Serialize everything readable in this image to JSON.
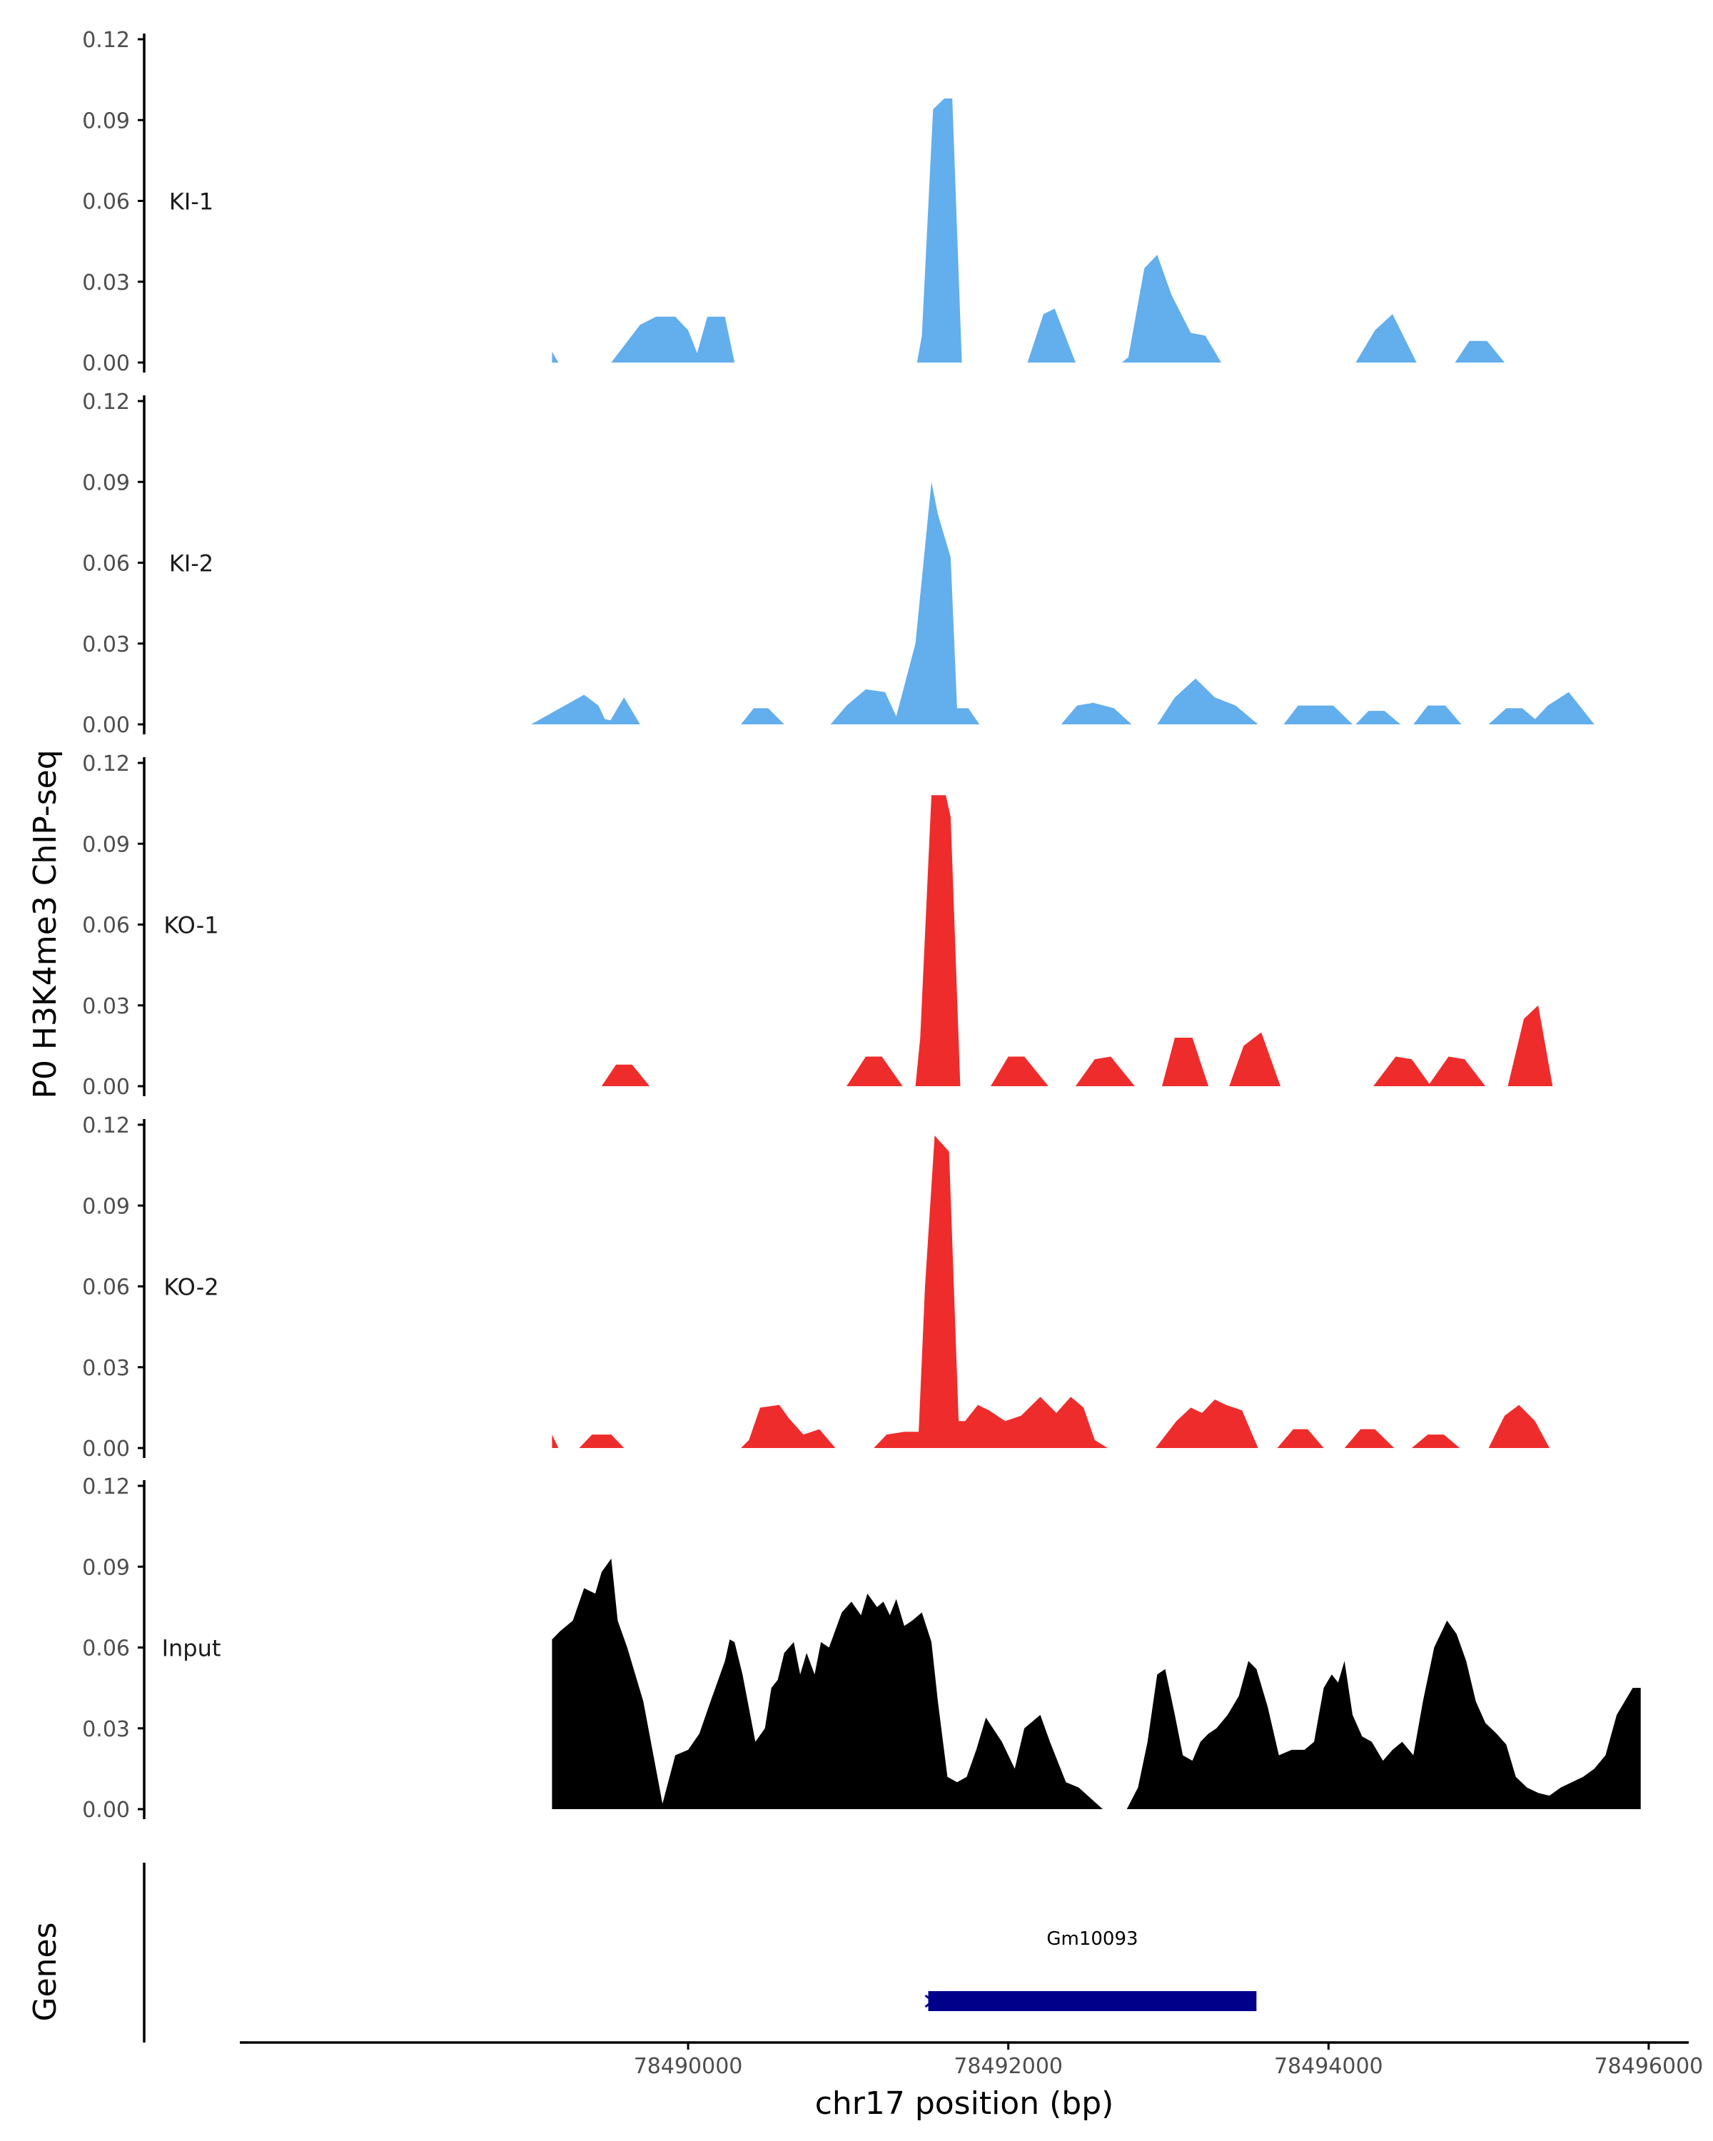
{
  "chart_data": {
    "type": "area",
    "ylabel": "P0 H3K4me3 ChIP-seq",
    "xlabel": "chr17 position (bp)",
    "xlim": [
      78487200,
      78496250
    ],
    "ylim": [
      0,
      0.12
    ],
    "y_ticks": [
      0,
      0.03,
      0.06,
      0.09,
      0.12
    ],
    "y_tick_labels": [
      "0.00",
      "0.03",
      "0.06",
      "0.09",
      "0.12"
    ],
    "x_ticks": [
      78490000,
      78492000,
      78494000,
      78496000
    ],
    "x_tick_labels": [
      "78490000",
      "78492000",
      "78494000",
      "78496000"
    ],
    "colors": {
      "KI": "#63aeec",
      "KO": "#ee2c2c",
      "Input": "#000000",
      "gene": "#00008b",
      "axis": "#000000"
    },
    "series": [
      {
        "name": "KI-1",
        "color": "#63aeec",
        "peaks": [
          {
            "x": [
              78489150,
              78489190
            ],
            "y": [
              0.004,
              0.0
            ]
          },
          {
            "x": [
              78489520,
              78489700,
              78489800,
              78489920,
              78490000,
              78490080
            ],
            "y": [
              0.0,
              0.014,
              0.017,
              0.017,
              0.012,
              0.0
            ]
          },
          {
            "x": [
              78490040,
              78490120,
              78490230,
              78490290
            ],
            "y": [
              0.0,
              0.017,
              0.017,
              0.0
            ]
          },
          {
            "x": [
              78491430,
              78491460,
              78491530,
              78491600,
              78491650,
              78491710
            ],
            "y": [
              0.0,
              0.01,
              0.094,
              0.098,
              0.098,
              0.0
            ]
          },
          {
            "x": [
              78492120,
              78492220,
              78492290,
              78492420
            ],
            "y": [
              0.0,
              0.018,
              0.02,
              0.0
            ]
          },
          {
            "x": [
              78492710,
              78492750,
              78492850,
              78492930,
              78493020,
              78493140,
              78493230,
              78493330
            ],
            "y": [
              0.0,
              0.002,
              0.035,
              0.04,
              0.025,
              0.011,
              0.01,
              0.0
            ]
          },
          {
            "x": [
              78494170,
              78494290,
              78494400,
              78494550
            ],
            "y": [
              0.0,
              0.012,
              0.018,
              0.0
            ]
          },
          {
            "x": [
              78494790,
              78494880,
              78494990,
              78495100
            ],
            "y": [
              0.0,
              0.008,
              0.008,
              0.0
            ]
          }
        ]
      },
      {
        "name": "KI-2",
        "color": "#63aeec",
        "peaks": [
          {
            "x": [
              78489020,
              78489140,
              78489350,
              78489440,
              78489480,
              78489620,
              78489680
            ],
            "y": [
              0.0,
              0.004,
              0.011,
              0.007,
              0.002,
              0.0,
              0.0
            ]
          },
          {
            "x": [
              78489500,
              78489600,
              78489700
            ],
            "y": [
              0.0,
              0.01,
              0.0
            ]
          },
          {
            "x": [
              78490330,
              78490410,
              78490500,
              78490600
            ],
            "y": [
              0.0,
              0.006,
              0.006,
              0.0
            ]
          },
          {
            "x": [
              78490890,
              78490990,
              78491110,
              78491230,
              78491300,
              78491420,
              78491520,
              78491560,
              78491640,
              78491680,
              78491750,
              78491820
            ],
            "y": [
              0.0,
              0.007,
              0.013,
              0.012,
              0.003,
              0.03,
              0.09,
              0.078,
              0.062,
              0.006,
              0.006,
              0.0
            ]
          },
          {
            "x": [
              78492330,
              78492430,
              78492530,
              78492660,
              78492770
            ],
            "y": [
              0.0,
              0.007,
              0.008,
              0.006,
              0.0
            ]
          },
          {
            "x": [
              78492930,
              78493040,
              78493170,
              78493290,
              78493420,
              78493560
            ],
            "y": [
              0.0,
              0.01,
              0.017,
              0.01,
              0.007,
              0.0
            ]
          },
          {
            "x": [
              78493720,
              78493810,
              78493910,
              78494030,
              78494150
            ],
            "y": [
              0.0,
              0.007,
              0.007,
              0.007,
              0.0
            ]
          },
          {
            "x": [
              78494170,
              78494250,
              78494350,
              78494450
            ],
            "y": [
              0.0,
              0.005,
              0.005,
              0.0
            ]
          },
          {
            "x": [
              78494530,
              78494620,
              78494730,
              78494830
            ],
            "y": [
              0.0,
              0.007,
              0.007,
              0.0
            ]
          },
          {
            "x": [
              78495000,
              78495110,
              78495210,
              78495330
            ],
            "y": [
              0.0,
              0.006,
              0.006,
              0.0
            ]
          },
          {
            "x": [
              78495260,
              78495370,
              78495500,
              78495660
            ],
            "y": [
              0.0,
              0.007,
              0.012,
              0.0
            ]
          }
        ]
      },
      {
        "name": "KO-1",
        "color": "#ee2c2c",
        "peaks": [
          {
            "x": [
              78489460,
              78489550,
              78489650,
              78489760
            ],
            "y": [
              0.0,
              0.008,
              0.008,
              0.0
            ]
          },
          {
            "x": [
              78490990,
              78491110,
              78491210,
              78491340
            ],
            "y": [
              0.0,
              0.011,
              0.011,
              0.0
            ]
          },
          {
            "x": [
              78491420,
              78491450,
              78491520,
              78491610,
              78491640,
              78491700
            ],
            "y": [
              0.0,
              0.018,
              0.108,
              0.108,
              0.1,
              0.0
            ]
          },
          {
            "x": [
              78491890,
              78492000,
              78492100,
              78492250
            ],
            "y": [
              0.0,
              0.011,
              0.011,
              0.0
            ]
          },
          {
            "x": [
              78492420,
              78492540,
              78492640,
              78492790
            ],
            "y": [
              0.0,
              0.01,
              0.011,
              0.0
            ]
          },
          {
            "x": [
              78492960,
              78493040,
              78493150,
              78493250
            ],
            "y": [
              0.0,
              0.018,
              0.018,
              0.0
            ]
          },
          {
            "x": [
              78493380,
              78493470,
              78493580,
              78493700
            ],
            "y": [
              0.0,
              0.015,
              0.02,
              0.0
            ]
          },
          {
            "x": [
              78494280,
              78494420,
              78494520,
              78494640
            ],
            "y": [
              0.0,
              0.011,
              0.01,
              0.0
            ]
          },
          {
            "x": [
              78494620,
              78494750,
              78494850,
              78494980
            ],
            "y": [
              0.0,
              0.011,
              0.01,
              0.0
            ]
          },
          {
            "x": [
              78495120,
              78495220,
              78495310,
              78495400
            ],
            "y": [
              0.0,
              0.025,
              0.03,
              0.0
            ]
          }
        ]
      },
      {
        "name": "KO-2",
        "color": "#ee2c2c",
        "peaks": [
          {
            "x": [
              78489150,
              78489190
            ],
            "y": [
              0.005,
              0.0
            ]
          },
          {
            "x": [
              78489320,
              78489400,
              78489520,
              78489600
            ],
            "y": [
              0.0,
              0.005,
              0.005,
              0.0
            ]
          },
          {
            "x": [
              78490330,
              78490380,
              78490450,
              78490570,
              78490630,
              78490720,
              78490820,
              78490920
            ],
            "y": [
              0.0,
              0.003,
              0.015,
              0.016,
              0.011,
              0.005,
              0.007,
              0.0
            ]
          },
          {
            "x": [
              78491160,
              78491240,
              78491350,
              78491440,
              78491480,
              78491540,
              78491630,
              78491690,
              78491730,
              78491810,
              78491880,
              78491980,
              78492080,
              78492200,
              78492300,
              78492390,
              78492470,
              78492540,
              78492620
            ],
            "y": [
              0.0,
              0.005,
              0.006,
              0.006,
              0.06,
              0.116,
              0.11,
              0.01,
              0.01,
              0.016,
              0.014,
              0.01,
              0.012,
              0.019,
              0.013,
              0.019,
              0.015,
              0.003,
              0.0
            ]
          },
          {
            "x": [
              78492920,
              78493050,
              78493140,
              78493210,
              78493290,
              78493360,
              78493460,
              78493560
            ],
            "y": [
              0.0,
              0.01,
              0.015,
              0.013,
              0.018,
              0.016,
              0.014,
              0.0
            ]
          },
          {
            "x": [
              78493680,
              78493780,
              78493870,
              78493970
            ],
            "y": [
              0.0,
              0.007,
              0.007,
              0.0
            ]
          },
          {
            "x": [
              78494100,
              78494200,
              78494290,
              78494410
            ],
            "y": [
              0.0,
              0.007,
              0.007,
              0.0
            ]
          },
          {
            "x": [
              78494520,
              78494620,
              78494720,
              78494820
            ],
            "y": [
              0.0,
              0.005,
              0.005,
              0.0
            ]
          },
          {
            "x": [
              78495000,
              78495100,
              78495190,
              78495290,
              78495380
            ],
            "y": [
              0.0,
              0.012,
              0.016,
              0.01,
              0.0
            ]
          }
        ]
      },
      {
        "name": "Input",
        "color": "#000000",
        "peaks": [
          {
            "x": [
              78489150,
              78489200,
              78489280,
              78489350,
              78489420,
              78489460,
              78489520,
              78489560,
              78489620,
              78489720,
              78489840,
              78489920,
              78490000,
              78490070,
              78490140,
              78490230,
              78490260,
              78490290,
              78490340,
              78490420,
              78490480,
              78490520,
              78490560,
              78490600,
              78490660,
              78490700,
              78490740,
              78490790,
              78490830,
              78490880,
              78490960,
              78491020,
              78491080,
              78491120,
              78491180,
              78491220,
              78491260,
              78491300,
              78491350,
              78491400,
              78491460,
              78491520,
              78491560,
              78491620,
              78491680,
              78491740,
              78491800,
              78491860,
              78491960,
              78492040,
              78492100,
              78492200,
              78492260,
              78492360,
              78492440,
              78492590
            ],
            "y": [
              0.063,
              0.066,
              0.07,
              0.082,
              0.08,
              0.088,
              0.093,
              0.07,
              0.06,
              0.04,
              0.002,
              0.02,
              0.022,
              0.028,
              0.04,
              0.055,
              0.063,
              0.062,
              0.05,
              0.025,
              0.03,
              0.045,
              0.048,
              0.058,
              0.062,
              0.05,
              0.058,
              0.05,
              0.062,
              0.06,
              0.073,
              0.077,
              0.072,
              0.08,
              0.075,
              0.077,
              0.072,
              0.078,
              0.068,
              0.07,
              0.073,
              0.062,
              0.04,
              0.012,
              0.01,
              0.012,
              0.022,
              0.034,
              0.025,
              0.015,
              0.03,
              0.035,
              0.025,
              0.01,
              0.008,
              0.0
            ]
          },
          {
            "x": [
              78492740,
              78492810,
              78492870,
              78492930,
              78492980,
              78493040,
              78493090,
              78493150,
              78493200,
              78493250,
              78493300,
              78493370,
              78493440,
              78493500,
              78493550,
              78493620,
              78493690,
              78493770,
              78493850,
              78493910,
              78493970,
              78494020,
              78494060,
              78494100,
              78494150,
              78494210,
              78494270,
              78494340,
              78494400,
              78494460,
              78494530,
              78494590,
              78494660,
              78494740,
              78494800,
              78494860,
              78494920,
              78494980,
              78495050,
              78495110,
              78495170,
              78495240,
              78495310,
              78495380,
              78495450,
              78495520,
              78495590,
              78495660,
              78495730,
              78495800,
              78495900,
              78495950
            ],
            "y": [
              0.0,
              0.008,
              0.025,
              0.05,
              0.052,
              0.035,
              0.02,
              0.018,
              0.025,
              0.028,
              0.03,
              0.035,
              0.042,
              0.055,
              0.052,
              0.038,
              0.02,
              0.022,
              0.022,
              0.025,
              0.045,
              0.05,
              0.047,
              0.055,
              0.035,
              0.027,
              0.025,
              0.018,
              0.022,
              0.025,
              0.02,
              0.04,
              0.06,
              0.07,
              0.065,
              0.055,
              0.04,
              0.032,
              0.028,
              0.024,
              0.012,
              0.008,
              0.006,
              0.005,
              0.008,
              0.01,
              0.012,
              0.015,
              0.02,
              0.035,
              0.045,
              0.045
            ]
          }
        ]
      }
    ],
    "genes": [
      {
        "name": "Gm10093",
        "start": 78491500,
        "end": 78493550
      }
    ],
    "gene_track_label": "Genes"
  }
}
